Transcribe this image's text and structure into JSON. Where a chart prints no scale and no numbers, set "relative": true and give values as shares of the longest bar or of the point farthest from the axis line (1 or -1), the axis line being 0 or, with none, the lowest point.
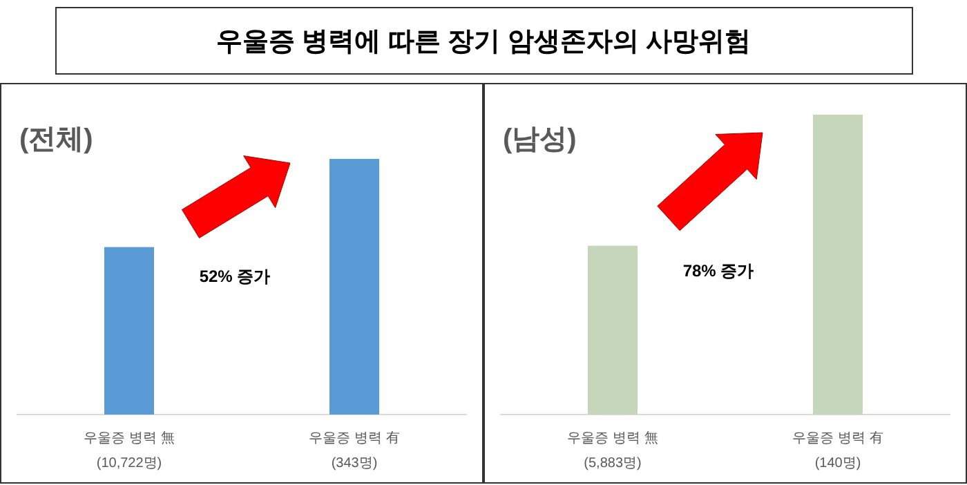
{
  "chart_data": [
    {
      "type": "bar",
      "title": "우울증 병력에 따른 장기 암생존자의 사망위험",
      "subtitle": "(전체)",
      "relative": true,
      "categories": [
        "우울증 병력 無\n(10,722명)",
        "우울증 병력 有\n(343명)"
      ],
      "values": [
        0.655,
        1
      ],
      "color": "#5b9bd5",
      "annotations": [
        "52% 증가"
      ]
    },
    {
      "type": "bar",
      "subtitle": "(남성)",
      "relative": true,
      "categories": [
        "우울증 병력 無\n(5,883명)",
        "우울증 병력 有\n(140명)"
      ],
      "values": [
        0.563,
        1
      ],
      "color": "#c5d6bb",
      "annotations": [
        "78% 증가"
      ]
    }
  ]
}
